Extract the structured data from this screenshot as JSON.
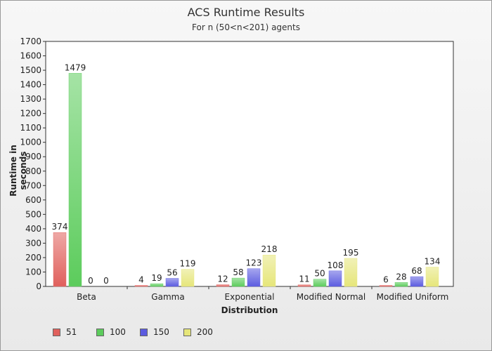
{
  "chart_data": {
    "type": "bar",
    "title": "ACS Runtime Results",
    "subtitle": "For n (50<n<201) agents",
    "xlabel": "Distribution",
    "ylabel": "Runtime in seconds",
    "ylim": [
      0,
      1700
    ],
    "yticks": [
      0,
      100,
      200,
      300,
      400,
      500,
      600,
      700,
      800,
      900,
      1000,
      1100,
      1200,
      1300,
      1400,
      1500,
      1600,
      1700
    ],
    "categories": [
      "Beta",
      "Gamma",
      "Exponential",
      "Modified Normal",
      "Modified Uniform"
    ],
    "series": [
      {
        "name": "51",
        "values": [
          374,
          4,
          12,
          11,
          6
        ],
        "color": "#e0605c"
      },
      {
        "name": "100",
        "values": [
          1479,
          19,
          58,
          50,
          28
        ],
        "color": "#5ccc5c"
      },
      {
        "name": "150",
        "values": [
          0,
          56,
          123,
          108,
          68
        ],
        "color": "#5c5ce0"
      },
      {
        "name": "200",
        "values": [
          0,
          119,
          218,
          195,
          134
        ],
        "color": "#e6e67a"
      }
    ],
    "legend_position": "bottom",
    "grid": false
  }
}
